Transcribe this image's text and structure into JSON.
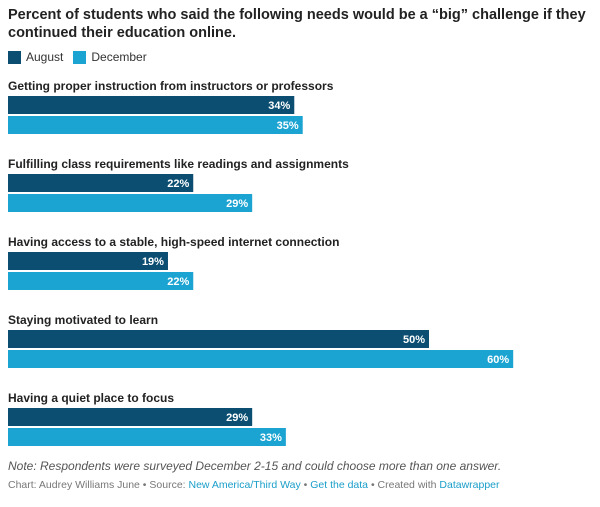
{
  "title": "Percent of students who said the following needs would be a “big” challenge if they continued their education online.",
  "legend": [
    {
      "name": "August",
      "color": "#0b4e72"
    },
    {
      "name": "December",
      "color": "#1ba3d1"
    }
  ],
  "chart_data": {
    "type": "bar",
    "orientation": "horizontal",
    "categories": [
      "Getting proper instruction from instructors or professors",
      "Fulfilling class requirements like readings and assignments",
      "Having access to a stable, high-speed internet connection",
      "Staying motivated to learn",
      "Having a quiet place to focus"
    ],
    "series": [
      {
        "name": "August",
        "values": [
          34,
          22,
          19,
          50,
          29
        ],
        "color": "#0b4e72"
      },
      {
        "name": "December",
        "values": [
          35,
          29,
          22,
          60,
          33
        ],
        "color": "#1ba3d1"
      }
    ],
    "value_suffix": "%",
    "xlim": [
      0,
      70
    ],
    "grid": false
  },
  "note": "Note: Respondents were surveyed December 2-15 and could choose more than one answer.",
  "credit": {
    "prefix": "Chart: Audrey Williams June • Source: ",
    "source_link": "New America/Third Way",
    "sep1": " • ",
    "data_link": "Get the data",
    "sep2": " • Created with ",
    "tool_link": "Datawrapper"
  }
}
